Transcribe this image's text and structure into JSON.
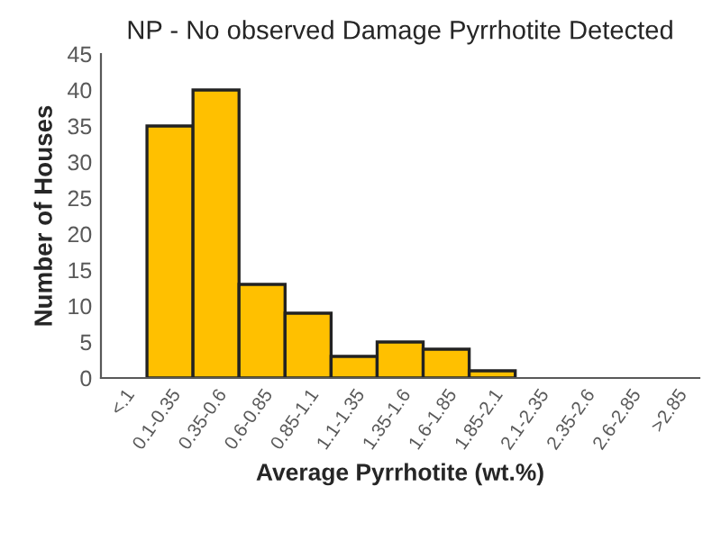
{
  "chart_data": {
    "type": "bar",
    "title": "NP - No observed Damage Pyrrhotite Detected",
    "xlabel": "Average Pyrrhotite (wt.%)",
    "ylabel": "Number of Houses",
    "categories": [
      "<.1",
      "0.1-0.35",
      "0.35-0.6",
      "0.6-0.85",
      "0.85-1.1",
      "1.1-1.35",
      "1.35-1.6",
      "1.6-1.85",
      "1.85-2.1",
      "2.1-2.35",
      "2.35-2.6",
      "2.6-2.85",
      ">2.85"
    ],
    "values": [
      0,
      35,
      40,
      13,
      9,
      3,
      5,
      4,
      1,
      0,
      0,
      0,
      0
    ],
    "color": "#ffc000",
    "ylim": [
      0,
      45
    ],
    "yticks": [
      0,
      5,
      10,
      15,
      20,
      25,
      30,
      35,
      40,
      45
    ],
    "grid": false,
    "legend": false
  }
}
